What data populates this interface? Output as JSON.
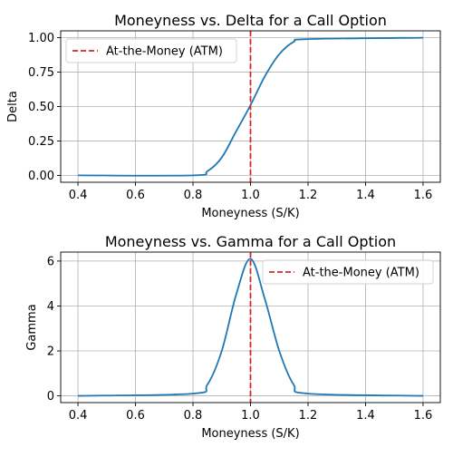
{
  "chart_data": [
    {
      "type": "line",
      "title": "Moneyness vs. Delta for a Call Option",
      "xlabel": "Moneyness (S/K)",
      "ylabel": "Delta",
      "xlim": [
        0.34,
        1.66
      ],
      "ylim": [
        -0.05,
        1.05
      ],
      "x_ticks": [
        0.4,
        0.6,
        0.8,
        1.0,
        1.2,
        1.4,
        1.6
      ],
      "x_tick_labels": [
        "0.4",
        "0.6",
        "0.8",
        "1.0",
        "1.2",
        "1.4",
        "1.6"
      ],
      "y_ticks": [
        0.0,
        0.25,
        0.5,
        0.75,
        1.0
      ],
      "y_tick_labels": [
        "0.00",
        "0.25",
        "0.50",
        "0.75",
        "1.00"
      ],
      "grid": true,
      "legend_position": "top-left",
      "series": [
        {
          "color": "#1f77b4",
          "x": [
            0.4,
            0.8,
            0.85,
            0.9,
            0.95,
            1.0,
            1.05,
            1.1,
            1.15,
            1.2,
            1.6
          ],
          "y": [
            0.0,
            0.0,
            0.03,
            0.13,
            0.32,
            0.51,
            0.72,
            0.88,
            0.97,
            0.99,
            1.0
          ]
        }
      ],
      "vline": {
        "x": 1.0,
        "label": "At-the-Money (ATM)",
        "color": "#d62728",
        "style": "dashed"
      }
    },
    {
      "type": "line",
      "title": "Moneyness vs. Gamma for a Call Option",
      "xlabel": "Moneyness (S/K)",
      "ylabel": "Gamma",
      "xlim": [
        0.34,
        1.66
      ],
      "ylim": [
        -0.3,
        6.4
      ],
      "x_ticks": [
        0.4,
        0.6,
        0.8,
        1.0,
        1.2,
        1.4,
        1.6
      ],
      "x_tick_labels": [
        "0.4",
        "0.6",
        "0.8",
        "1.0",
        "1.2",
        "1.4",
        "1.6"
      ],
      "y_ticks": [
        0,
        2,
        4,
        6
      ],
      "y_tick_labels": [
        "0",
        "2",
        "4",
        "6"
      ],
      "grid": true,
      "legend_position": "top-right",
      "series": [
        {
          "color": "#1f77b4",
          "x": [
            0.4,
            0.8,
            0.85,
            0.9,
            0.95,
            1.0,
            1.05,
            1.1,
            1.15,
            1.2,
            1.6
          ],
          "y": [
            0.0,
            0.1,
            0.5,
            2.0,
            4.5,
            6.1,
            4.3,
            2.0,
            0.5,
            0.1,
            0.0
          ]
        }
      ],
      "vline": {
        "x": 1.0,
        "label": "At-the-Money (ATM)",
        "color": "#d62728",
        "style": "dashed"
      }
    }
  ]
}
